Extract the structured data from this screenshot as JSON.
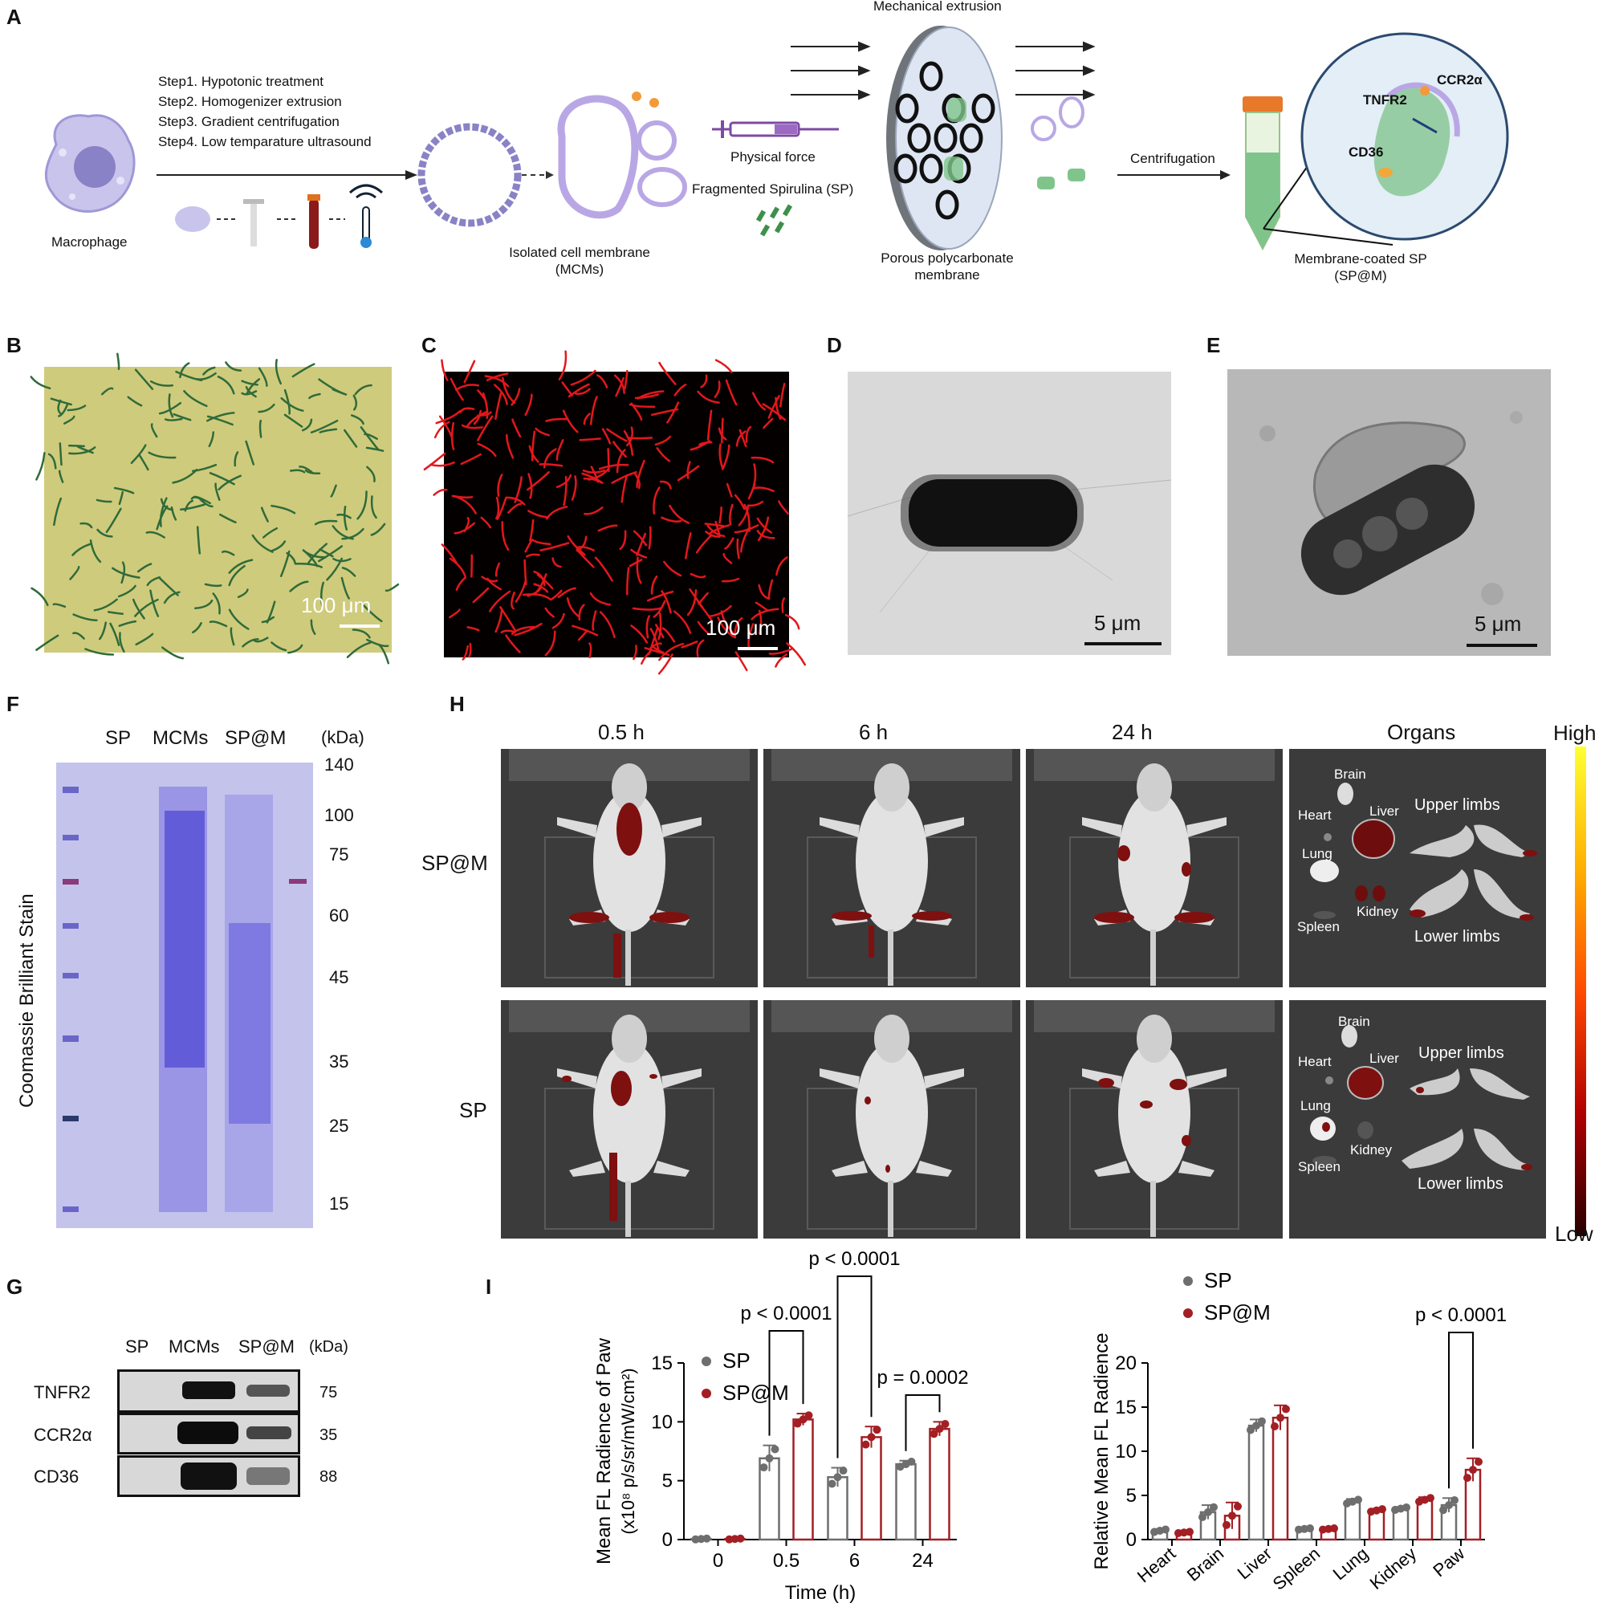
{
  "panelA": {
    "label": "A",
    "macrophage": "Macrophage",
    "steps": [
      "Step1. Hypotonic treatment",
      "Step2. Homogenizer extrusion",
      "Step3. Gradient centrifugation",
      "Step4. Low temparature ultrasound"
    ],
    "isolated_membrane": [
      "Isolated cell membrane",
      "(MCMs)"
    ],
    "physical_force": "Physical force",
    "fragmented_sp": "Fragmented Spirulina (SP)",
    "mechanical_extrusion": "Mechanical extrusion",
    "porous_membrane": [
      "Porous polycarbonate",
      "membrane"
    ],
    "centrifugation": "Centrifugation",
    "membrane_coated": [
      "Membrane-coated SP",
      "(SP@M)"
    ],
    "receptors": [
      "TNFR2",
      "CCR2α",
      "CD36"
    ]
  },
  "panelB": {
    "label": "B",
    "scale": "100 μm"
  },
  "panelC": {
    "label": "C",
    "scale": "100 μm"
  },
  "panelD": {
    "label": "D",
    "scale": "5 μm"
  },
  "panelE": {
    "label": "E",
    "scale": "5 μm"
  },
  "panelF": {
    "label": "F",
    "lanes": [
      "SP",
      "MCMs",
      "SP@M"
    ],
    "unit": "(kDa)",
    "markers": [
      "140",
      "100",
      "75",
      "60",
      "45",
      "35",
      "25",
      "15"
    ],
    "ylabel": "Coomassie Brilliant Stain"
  },
  "panelG": {
    "label": "G",
    "lanes": [
      "SP",
      "MCMs",
      "SP@M"
    ],
    "unit": "(kDa)",
    "rows": [
      {
        "name": "TNFR2",
        "kda": "75"
      },
      {
        "name": "CCR2α",
        "kda": "35"
      },
      {
        "name": "CD36",
        "kda": "88"
      }
    ]
  },
  "panelH": {
    "label": "H",
    "columns": [
      "0.5 h",
      "6 h",
      "24 h",
      "Organs"
    ],
    "rows": [
      "SP@M",
      "SP"
    ],
    "organs_spm": [
      "Brain",
      "Heart",
      "Liver",
      "Upper limbs",
      "Lung",
      "Kidney",
      "Spleen",
      "Lower limbs"
    ],
    "organs_sp": [
      "Brain",
      "Heart",
      "Liver",
      "Upper limbs",
      "Lung",
      "Kidney",
      "Spleen",
      "Lower limbs"
    ],
    "colorbar": {
      "high": "High",
      "low": "Low"
    }
  },
  "panelI": {
    "label": "I"
  },
  "chart_data": [
    {
      "type": "bar",
      "categories": [
        "0",
        "0.5",
        "6",
        "24"
      ],
      "series": [
        {
          "name": "SP",
          "color": "#6e6e6e",
          "values": [
            0.05,
            6.9,
            5.3,
            6.4
          ],
          "err": [
            0.05,
            1.1,
            0.8,
            0.3
          ]
        },
        {
          "name": "SP@M",
          "color": "#a31f24",
          "values": [
            0.05,
            10.2,
            8.7,
            9.4
          ],
          "err": [
            0.05,
            0.5,
            0.9,
            0.6
          ]
        }
      ],
      "xlabel": "Time (h)",
      "ylabel": "Mean FL Radience of Paw",
      "ylabel2": "(x10⁸ p/s/sr/mW/cm²)",
      "ylim": [
        0,
        15
      ],
      "yticks": [
        0,
        5,
        10,
        15
      ],
      "annotations": [
        {
          "text": "p < 0.0001",
          "pair": 1
        },
        {
          "text": "p < 0.0001",
          "pair": 2
        },
        {
          "text": "p = 0.0002",
          "pair": 3
        }
      ]
    },
    {
      "type": "bar",
      "categories": [
        "Heart",
        "Brain",
        "Liver",
        "Spleen",
        "Lung",
        "Kidney",
        "Paw"
      ],
      "series": [
        {
          "name": "SP",
          "color": "#6e6e6e",
          "values": [
            1.0,
            3.1,
            12.9,
            1.2,
            4.3,
            3.5,
            3.9
          ],
          "err": [
            0.2,
            0.8,
            0.7,
            0.1,
            0.3,
            0.2,
            0.8
          ]
        },
        {
          "name": "SP@M",
          "color": "#a31f24",
          "values": [
            0.8,
            2.7,
            13.8,
            1.2,
            3.3,
            4.5,
            7.9
          ],
          "err": [
            0.1,
            1.5,
            1.4,
            0.1,
            0.2,
            0.3,
            1.3
          ]
        }
      ],
      "xlabel": "",
      "ylabel": "Relative Mean FL Radience",
      "ylim": [
        0,
        20
      ],
      "yticks": [
        0,
        5,
        10,
        15,
        20
      ],
      "annotations": [
        {
          "text": "p < 0.0001",
          "pair": 6
        }
      ]
    }
  ]
}
